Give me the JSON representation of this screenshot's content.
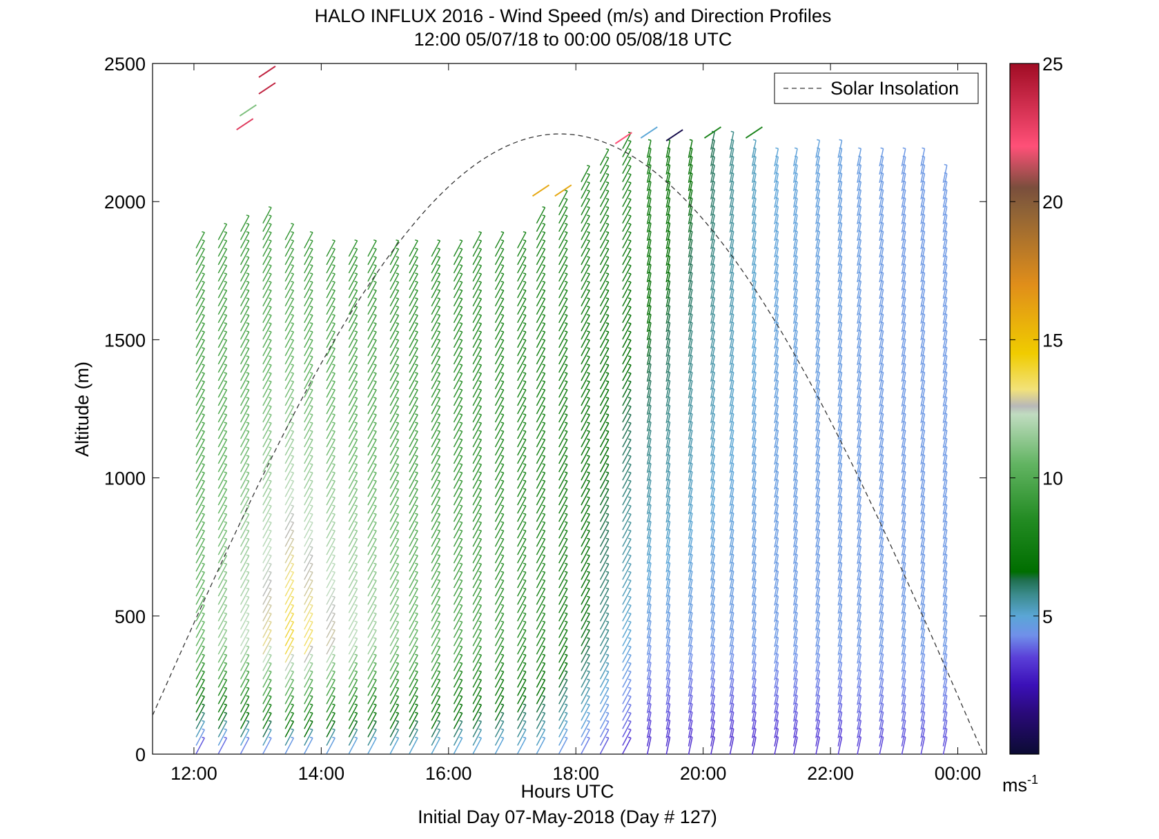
{
  "chart_data": {
    "type": "wind-barb-profile",
    "title": "HALO INFLUX 2016 - Wind Speed (m/s) and Direction Profiles",
    "subtitle": "12:00 05/07/18 to 00:00 05/08/18  UTC",
    "xlabel": "Hours UTC",
    "footer": "Initial Day 07-May-2018 (Day # 127)",
    "ylabel": "Altitude (m)",
    "x_range_hours": [
      11.35,
      24.45
    ],
    "x_ticks": [
      {
        "hour": 12,
        "label": "12:00"
      },
      {
        "hour": 14,
        "label": "14:00"
      },
      {
        "hour": 16,
        "label": "16:00"
      },
      {
        "hour": 18,
        "label": "18:00"
      },
      {
        "hour": 20,
        "label": "20:00"
      },
      {
        "hour": 22,
        "label": "22:00"
      },
      {
        "hour": 24,
        "label": "00:00"
      }
    ],
    "ylim": [
      0,
      2500
    ],
    "y_ticks": [
      0,
      500,
      1000,
      1500,
      2000,
      2500
    ],
    "y_tick_labels": [
      "0",
      "500",
      "1000",
      "1500",
      "2000",
      "2500"
    ],
    "colorbar": {
      "min": 0,
      "max": 25,
      "ticks": [
        5,
        10,
        15,
        20,
        25
      ],
      "tick_labels": [
        "5",
        "10",
        "15",
        "20",
        "25"
      ],
      "unit_label": "ms",
      "unit_exponent": "-1",
      "stops": [
        {
          "v": 0,
          "c": "#0b0b33"
        },
        {
          "v": 1.5,
          "c": "#2a0a7a"
        },
        {
          "v": 2.5,
          "c": "#3b10b8"
        },
        {
          "v": 3.5,
          "c": "#5a3fd8"
        },
        {
          "v": 4.3,
          "c": "#7090ea"
        },
        {
          "v": 5.0,
          "c": "#5aa6d6"
        },
        {
          "v": 5.8,
          "c": "#3a8a8a"
        },
        {
          "v": 6.3,
          "c": "#1f6f4f"
        },
        {
          "v": 6.6,
          "c": "#006e00"
        },
        {
          "v": 8.5,
          "c": "#238b23"
        },
        {
          "v": 10.5,
          "c": "#62b462"
        },
        {
          "v": 12.3,
          "c": "#c0dcc0"
        },
        {
          "v": 12.6,
          "c": "#b8b8b8"
        },
        {
          "v": 13.2,
          "c": "#f2e27a"
        },
        {
          "v": 14.5,
          "c": "#f0cc00"
        },
        {
          "v": 17,
          "c": "#e08e1a"
        },
        {
          "v": 19.8,
          "c": "#8a6038"
        },
        {
          "v": 20.5,
          "c": "#7a4e3c"
        },
        {
          "v": 22,
          "c": "#ff5078"
        },
        {
          "v": 25,
          "c": "#a00c24"
        }
      ]
    },
    "legend": {
      "position": "top-right",
      "entries": [
        {
          "label": "Solar Insolation",
          "style": "dashed",
          "color": "#000000"
        }
      ]
    },
    "solar_insolation_curve": {
      "sunrise_hour": 11.35,
      "peak_hour": 17.75,
      "sunset_hour": 24.4,
      "peak_altitude_equiv": 2245
    },
    "profile_times_hours": [
      12.1,
      12.45,
      12.8,
      13.15,
      13.5,
      13.8,
      14.15,
      14.5,
      14.8,
      15.15,
      15.45,
      15.8,
      16.15,
      16.45,
      16.8,
      17.15,
      17.45,
      17.8,
      18.15,
      18.45,
      18.8,
      19.15,
      19.45,
      19.8,
      20.15,
      20.45,
      20.8,
      21.15,
      21.45,
      21.8,
      22.15,
      22.45,
      22.8,
      23.15,
      23.45,
      23.8
    ],
    "profile_top_altitudes_m": [
      1880,
      1890,
      1930,
      1950,
      1900,
      1880,
      1840,
      1830,
      1830,
      1850,
      1830,
      1840,
      1840,
      1860,
      1870,
      1880,
      1960,
      2030,
      2120,
      2160,
      2220,
      2200,
      2200,
      2190,
      2220,
      2220,
      2200,
      2170,
      2170,
      2190,
      2200,
      2180,
      2180,
      2180,
      2160,
      2120
    ],
    "representative_speeds_by_time_ms": [
      {
        "hour": 12.1,
        "low_m_s": 3,
        "mid_m_s": 10.5,
        "high_m_s": 9
      },
      {
        "hour": 13.5,
        "low_m_s": 3.5,
        "mid_m_s": 14,
        "high_m_s": 9
      },
      {
        "hour": 15.5,
        "low_m_s": 4.5,
        "mid_m_s": 10.5,
        "high_m_s": 8.5
      },
      {
        "hour": 17.5,
        "low_m_s": 4.5,
        "mid_m_s": 8,
        "high_m_s": 8
      },
      {
        "hour": 19.0,
        "low_m_s": 3,
        "mid_m_s": 4.5,
        "high_m_s": 8
      },
      {
        "hour": 21.0,
        "low_m_s": 3,
        "mid_m_s": 4.5,
        "high_m_s": 5
      },
      {
        "hour": 23.0,
        "low_m_s": 3.5,
        "mid_m_s": 4.5,
        "high_m_s": 4.5
      }
    ],
    "isolated_barbs": [
      {
        "hour": 12.8,
        "altitude_m": 2280,
        "speed_m_s": 23
      },
      {
        "hour": 12.85,
        "altitude_m": 2330,
        "speed_m_s": 11
      },
      {
        "hour": 13.15,
        "altitude_m": 2410,
        "speed_m_s": 24
      },
      {
        "hour": 13.15,
        "altitude_m": 2470,
        "speed_m_s": 24
      },
      {
        "hour": 17.45,
        "altitude_m": 2040,
        "speed_m_s": 16
      },
      {
        "hour": 17.8,
        "altitude_m": 2040,
        "speed_m_s": 16
      },
      {
        "hour": 18.75,
        "altitude_m": 2230,
        "speed_m_s": 22
      },
      {
        "hour": 19.15,
        "altitude_m": 2250,
        "speed_m_s": 5
      },
      {
        "hour": 19.55,
        "altitude_m": 2240,
        "speed_m_s": 0.5
      },
      {
        "hour": 20.15,
        "altitude_m": 2250,
        "speed_m_s": 8
      },
      {
        "hour": 20.8,
        "altitude_m": 2250,
        "speed_m_s": 8
      }
    ]
  }
}
